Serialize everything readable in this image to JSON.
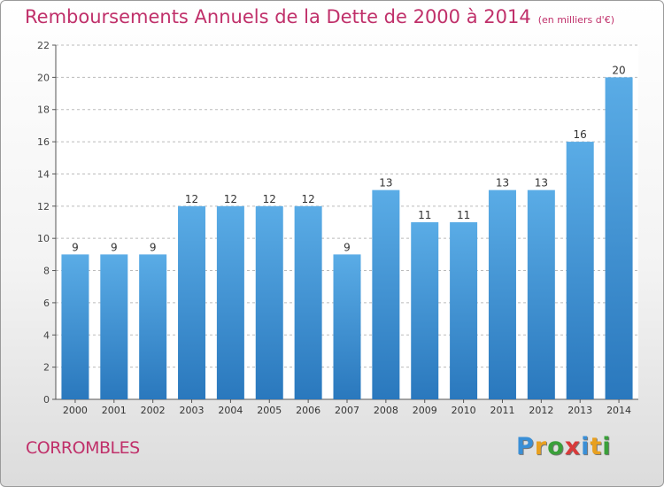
{
  "title": "Remboursements Annuels de la Dette de 2000 à 2014",
  "title_unit": "(en milliers d'€)",
  "commune": "CORROMBLES",
  "logo": {
    "text": "Proxiti",
    "letters": [
      {
        "char": "P",
        "color": "#3a8fd6"
      },
      {
        "char": "r",
        "color": "#e8a020"
      },
      {
        "char": "o",
        "color": "#3aa03a"
      },
      {
        "char": "x",
        "color": "#d83a3a"
      },
      {
        "char": "i",
        "color": "#3a8fd6"
      },
      {
        "char": "t",
        "color": "#e8a020"
      },
      {
        "char": "i",
        "color": "#3aa03a"
      }
    ]
  },
  "colors": {
    "bar_top": "#5aace6",
    "bar_bottom": "#2a78bd",
    "title": "#c0306a",
    "grid": "#bbbbbb"
  },
  "chart_data": {
    "type": "bar",
    "categories": [
      "2000",
      "2001",
      "2002",
      "2003",
      "2004",
      "2005",
      "2006",
      "2007",
      "2008",
      "2009",
      "2010",
      "2011",
      "2012",
      "2013",
      "2014"
    ],
    "values": [
      9,
      9,
      9,
      12,
      12,
      12,
      12,
      9,
      13,
      11,
      11,
      13,
      13,
      16,
      20
    ],
    "ylim": [
      0,
      22
    ],
    "yticks": [
      0,
      2,
      4,
      6,
      8,
      10,
      12,
      14,
      16,
      18,
      20,
      22
    ],
    "grid": true,
    "legend": "none"
  }
}
